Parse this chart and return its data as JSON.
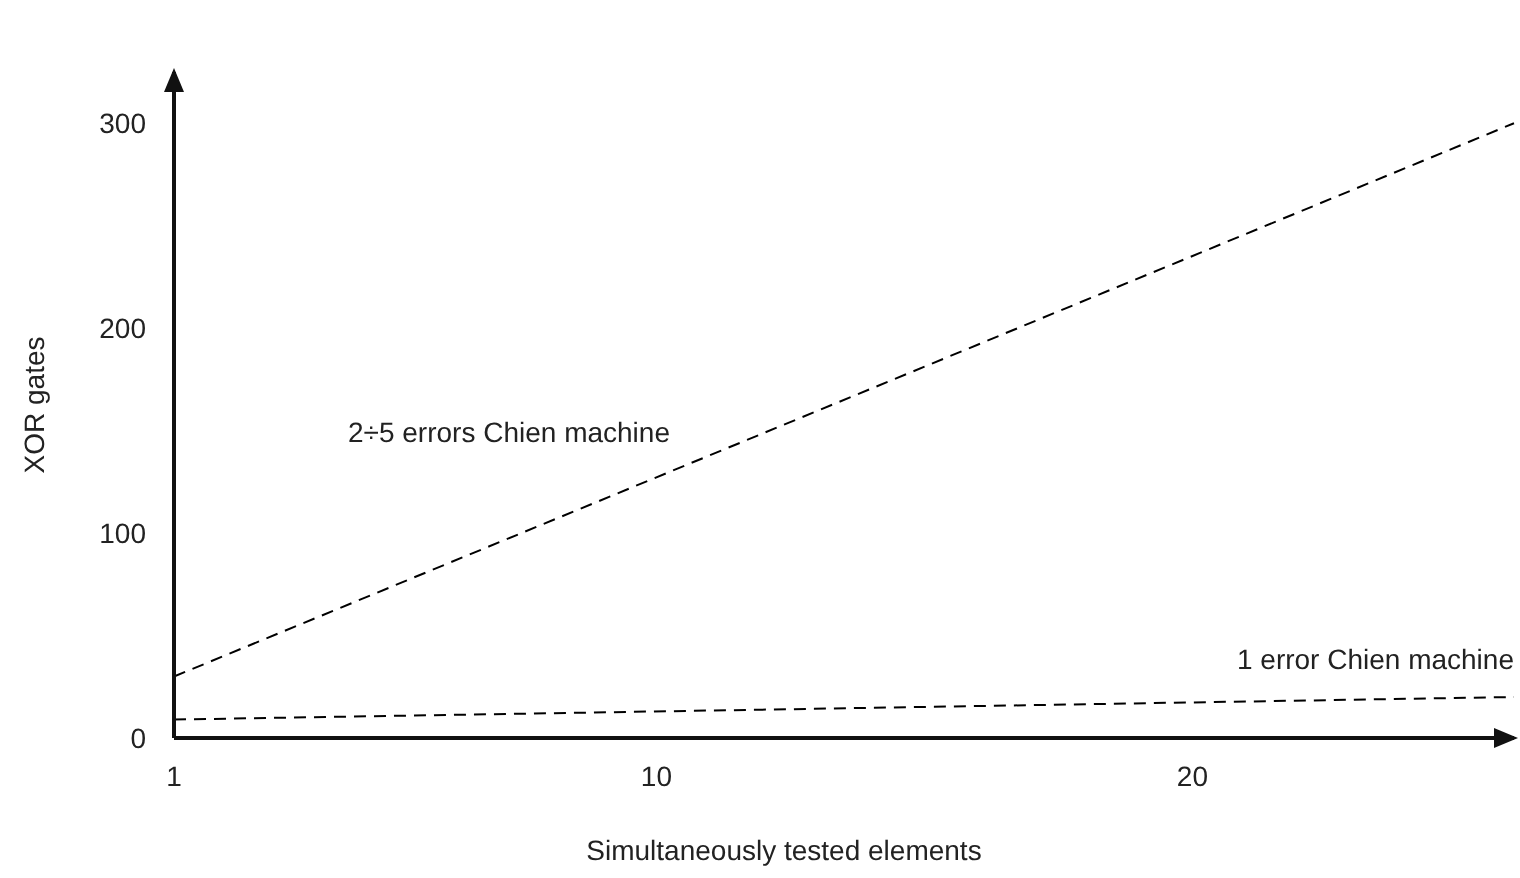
{
  "chart_data": {
    "type": "line",
    "xlabel": "Simultaneously tested elements",
    "ylabel": "XOR gates",
    "series": [
      {
        "name": "2÷5 errors Chien machine",
        "color": "#000000",
        "values": [
          30,
          300
        ]
      },
      {
        "name": "1 error Chien machine",
        "color": "#000000",
        "values": [
          9,
          20
        ]
      }
    ],
    "x": [
      1,
      26
    ],
    "xlim": [
      1,
      26
    ],
    "xticks": [
      1,
      10,
      20
    ],
    "ylim": [
      0,
      325
    ],
    "yticks": [
      0,
      100,
      200,
      300
    ],
    "grid": false,
    "marker": "none",
    "line_style": "dashed"
  }
}
